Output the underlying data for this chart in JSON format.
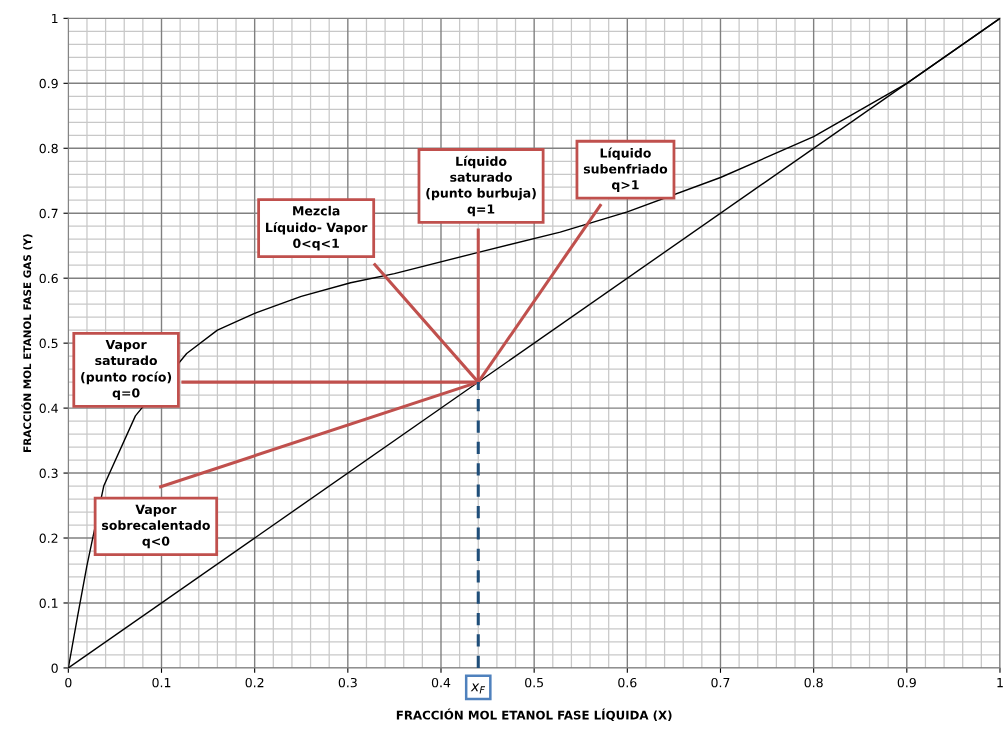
{
  "chart_data": {
    "type": "line",
    "xlabel": "FRACCIÓN MOL ETANOL FASE LÍQUIDA (X)",
    "ylabel": "FRACCIÓN MOL ETANOL FASE GAS (Y)",
    "xlim": [
      0,
      1
    ],
    "ylim": [
      0,
      1
    ],
    "xticks": [
      0,
      0.1,
      0.2,
      0.3,
      0.4,
      0.5,
      0.6,
      0.7,
      0.8,
      0.9,
      1
    ],
    "yticks": [
      0,
      0.1,
      0.2,
      0.3,
      0.4,
      0.5,
      0.6,
      0.7,
      0.8,
      0.9,
      1
    ],
    "grid": true,
    "marker": "none",
    "series": [
      {
        "color": "#000000",
        "x": [
          0,
          0.01,
          0.02,
          0.038,
          0.072,
          0.127,
          0.16,
          0.202,
          0.25,
          0.303,
          0.35,
          0.438,
          0.528,
          0.6,
          0.7,
          0.8,
          0.9,
          1
        ],
        "values": [
          0,
          0.08,
          0.158,
          0.28,
          0.388,
          0.484,
          0.52,
          0.547,
          0.572,
          0.593,
          0.607,
          0.639,
          0.671,
          0.702,
          0.755,
          0.818,
          0.9,
          1
        ]
      },
      {
        "color": "#000000",
        "x": [
          0,
          1
        ],
        "values": [
          0,
          1
        ]
      },
      {
        "color": "#c0504d",
        "x": [
          0.44,
          0.123
        ],
        "values": [
          0.44,
          0.44
        ]
      },
      {
        "color": "#c0504d",
        "x": [
          0.44,
          0.099
        ],
        "values": [
          0.44,
          0.279
        ]
      },
      {
        "color": "#c0504d",
        "x": [
          0.44,
          0.329
        ],
        "values": [
          0.44,
          0.621
        ]
      },
      {
        "color": "#c0504d",
        "x": [
          0.44,
          0.44
        ],
        "values": [
          0.44,
          0.674
        ]
      },
      {
        "color": "#c0504d",
        "x": [
          0.44,
          0.571
        ],
        "values": [
          0.44,
          0.712
        ]
      },
      {
        "color": "#1f4e79",
        "line_style": "dashed",
        "x": [
          0.44,
          0.44
        ],
        "values": [
          0,
          0.44
        ]
      }
    ],
    "annotations": [
      "Mezcla\nLíquido- Vapor\n0<q<1",
      "Líquido\nsaturado\n(punto burbuja)\nq=1",
      "Líquido\nsubenfriado\nq>1",
      "Vapor\nsaturado\n(punto rocío)\nq=0",
      "Vapor\nsobrecalentado\nq<0",
      {
        "text": "x$_{F}$",
        "x": 0.44,
        "y": 0
      }
    ]
  }
}
